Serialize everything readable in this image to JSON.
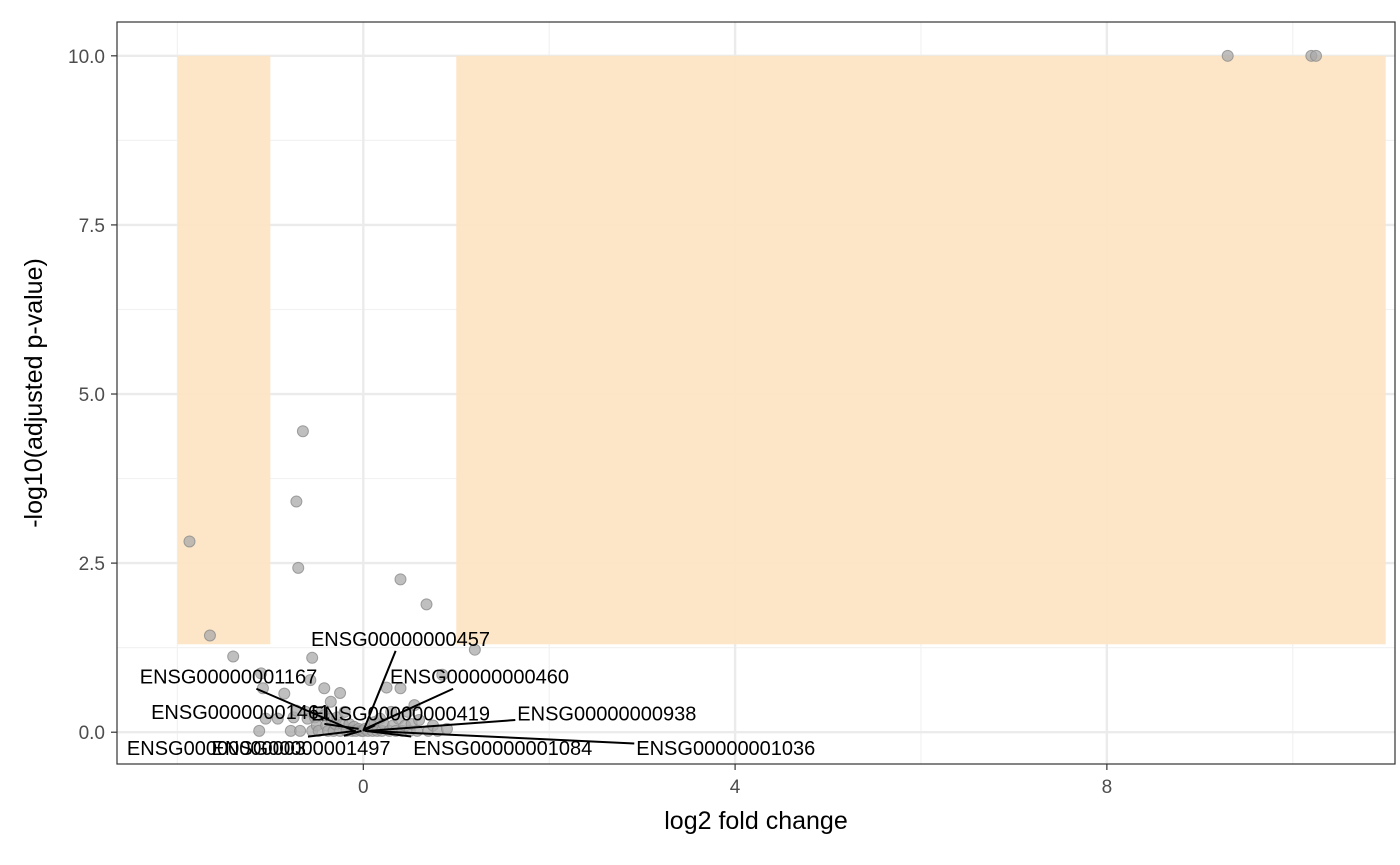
{
  "chart_data": {
    "type": "scatter",
    "title": "",
    "xlabel": "log2 fold change",
    "ylabel": "-log10(adjusted p-value)",
    "xlim": [
      -2.65,
      11.1
    ],
    "ylim": [
      -0.47,
      10.5
    ],
    "x_ticks": [
      0,
      4,
      8
    ],
    "x_tick_labels": [
      "0",
      "4",
      "8"
    ],
    "y_ticks": [
      0,
      2.5,
      5,
      7.5,
      10
    ],
    "y_tick_labels": [
      "0.0",
      "2.5",
      "5.0",
      "7.5",
      "10.0"
    ],
    "grid": true,
    "legend": "none",
    "colors": {
      "point_fill": "#a9a9a9",
      "point_stroke": "#8c8c8c",
      "highlight_region": "#fde5c4",
      "grid_major": "#ebebeb",
      "grid_minor": "#f2f2f2",
      "panel_border": "#333333"
    },
    "highlight_regions": [
      {
        "x": [
          -2.0,
          -1.0
        ],
        "y": [
          1.3,
          10.0
        ]
      },
      {
        "x": [
          1.0,
          11.0
        ],
        "y": [
          1.3,
          10.0
        ]
      }
    ],
    "points": [
      {
        "x": -1.87,
        "y": 2.82
      },
      {
        "x": -1.65,
        "y": 1.43
      },
      {
        "x": -1.4,
        "y": 1.12
      },
      {
        "x": -1.1,
        "y": 0.87
      },
      {
        "x": -1.08,
        "y": 0.65
      },
      {
        "x": -1.05,
        "y": 0.2
      },
      {
        "x": -1.12,
        "y": 0.02
      },
      {
        "x": -0.92,
        "y": 0.2
      },
      {
        "x": -0.85,
        "y": 0.57
      },
      {
        "x": -0.78,
        "y": 0.02
      },
      {
        "x": -0.75,
        "y": 0.22
      },
      {
        "x": -0.72,
        "y": 3.41
      },
      {
        "x": -0.72,
        "y": 0.32
      },
      {
        "x": -0.7,
        "y": 2.43
      },
      {
        "x": -0.68,
        "y": 0.02
      },
      {
        "x": -0.65,
        "y": 4.45
      },
      {
        "x": -0.62,
        "y": 0.3
      },
      {
        "x": -0.6,
        "y": 0.2
      },
      {
        "x": -0.57,
        "y": 0.77
      },
      {
        "x": -0.55,
        "y": 0.02
      },
      {
        "x": -0.52,
        "y": 0.22
      },
      {
        "x": -0.5,
        "y": 0.1
      },
      {
        "x": -0.48,
        "y": 0.02
      },
      {
        "x": -0.45,
        "y": 0.3
      },
      {
        "x": -0.42,
        "y": 0.25
      },
      {
        "x": -0.4,
        "y": 0.1
      },
      {
        "x": -0.38,
        "y": 0.02
      },
      {
        "x": -0.35,
        "y": 0.2
      },
      {
        "x": -0.32,
        "y": 0.02
      },
      {
        "x": -0.3,
        "y": 0.12
      },
      {
        "x": -0.28,
        "y": 0.22
      },
      {
        "x": -0.25,
        "y": 0.02
      },
      {
        "x": -0.22,
        "y": 0.12
      },
      {
        "x": -0.2,
        "y": 0.3
      },
      {
        "x": -0.18,
        "y": 0.02
      },
      {
        "x": -0.15,
        "y": 0.12
      },
      {
        "x": -0.12,
        "y": 0.02
      },
      {
        "x": -0.1,
        "y": 0.08
      },
      {
        "x": -0.08,
        "y": 0.02
      },
      {
        "x": -0.05,
        "y": 0.05
      },
      {
        "x": -0.02,
        "y": 0.02
      },
      {
        "x": 0.0,
        "y": 0.02
      },
      {
        "x": -0.55,
        "y": 1.1
      },
      {
        "x": -0.42,
        "y": 0.65
      },
      {
        "x": -0.25,
        "y": 0.58
      },
      {
        "x": -0.35,
        "y": 0.45
      },
      {
        "x": 0.02,
        "y": 0.05
      },
      {
        "x": 0.05,
        "y": 0.02
      },
      {
        "x": 0.08,
        "y": 0.1
      },
      {
        "x": 0.1,
        "y": 0.02
      },
      {
        "x": 0.12,
        "y": 0.15
      },
      {
        "x": 0.15,
        "y": 0.02
      },
      {
        "x": 0.18,
        "y": 0.2
      },
      {
        "x": 0.2,
        "y": 0.02
      },
      {
        "x": 0.22,
        "y": 0.12
      },
      {
        "x": 0.25,
        "y": 0.66
      },
      {
        "x": 0.28,
        "y": 0.02
      },
      {
        "x": 0.3,
        "y": 0.3
      },
      {
        "x": 0.32,
        "y": 0.1
      },
      {
        "x": 0.35,
        "y": 0.02
      },
      {
        "x": 0.38,
        "y": 0.2
      },
      {
        "x": 0.4,
        "y": 0.65
      },
      {
        "x": 0.4,
        "y": 2.26
      },
      {
        "x": 0.42,
        "y": 0.02
      },
      {
        "x": 0.45,
        "y": 0.1
      },
      {
        "x": 0.48,
        "y": 0.3
      },
      {
        "x": 0.5,
        "y": 0.02
      },
      {
        "x": 0.52,
        "y": 0.12
      },
      {
        "x": 0.55,
        "y": 0.4
      },
      {
        "x": 0.58,
        "y": 0.02
      },
      {
        "x": 0.6,
        "y": 0.18
      },
      {
        "x": 0.68,
        "y": 1.89
      },
      {
        "x": 0.7,
        "y": 0.02
      },
      {
        "x": 0.75,
        "y": 0.1
      },
      {
        "x": 0.8,
        "y": 0.02
      },
      {
        "x": 0.85,
        "y": 0.85
      },
      {
        "x": 0.9,
        "y": 0.05
      },
      {
        "x": 1.2,
        "y": 1.22
      },
      {
        "x": 9.3,
        "y": 10.0
      },
      {
        "x": 10.2,
        "y": 10.0
      },
      {
        "x": 10.25,
        "y": 10.0
      }
    ],
    "annotations": [
      {
        "text": "ENSG00000000457",
        "label_x": 0.4,
        "label_y": 1.38,
        "point_x": 0.0,
        "point_y": 0.02
      },
      {
        "text": "ENSG00000001167",
        "label_x": -1.45,
        "label_y": 0.82,
        "point_x": -0.1,
        "point_y": 0.02
      },
      {
        "text": "ENSG00000000460",
        "label_x": 1.25,
        "label_y": 0.82,
        "point_x": 0.02,
        "point_y": 0.05
      },
      {
        "text": "ENSG00000001461",
        "label_x": -1.32,
        "label_y": 0.3,
        "point_x": -0.05,
        "point_y": 0.05
      },
      {
        "text": "ENSG00000000419",
        "label_x": 0.4,
        "label_y": 0.28,
        "point_x": 0.0,
        "point_y": 0.02
      },
      {
        "text": "ENSG00000000938",
        "label_x": 2.62,
        "label_y": 0.28,
        "point_x": 0.05,
        "point_y": 0.02
      },
      {
        "text": "ENSG00000000003",
        "label_x": -1.58,
        "label_y": -0.23,
        "point_x": -0.08,
        "point_y": 0.02
      },
      {
        "text": "ENSG00000001497",
        "label_x": -0.67,
        "label_y": -0.23,
        "point_x": -0.02,
        "point_y": 0.02
      },
      {
        "text": "ENSG00000001084",
        "label_x": 1.5,
        "label_y": -0.23,
        "point_x": 0.02,
        "point_y": 0.02
      },
      {
        "text": "ENSG00000001036",
        "label_x": 3.9,
        "label_y": -0.23,
        "point_x": 0.05,
        "point_y": 0.02
      }
    ]
  }
}
